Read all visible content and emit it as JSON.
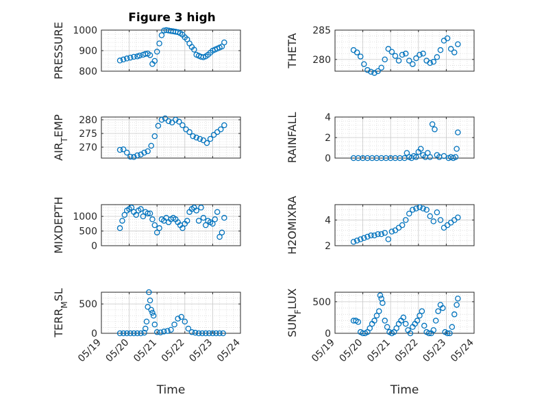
{
  "figure": {
    "title": "Figure 3 high"
  },
  "colors": {
    "marker": "#0072BD",
    "grid": "#c8c8c8",
    "axis": "#262626",
    "background": "#ffffff"
  },
  "chart_data": [
    {
      "type": "scatter",
      "title": "Figure 3 high",
      "xlabel": "",
      "ylabel": "PRESSURE",
      "xlim": [
        "05/19",
        "05/24"
      ],
      "xticks": [
        "05/19",
        "05/20",
        "05/21",
        "05/22",
        "05/23",
        "05/24"
      ],
      "xticklabels_visible": false,
      "ylim": [
        800,
        1000
      ],
      "yticks": [
        800,
        900,
        1000
      ],
      "grid": "on",
      "series": [
        {
          "x": [
            "05/19 16:00",
            "05/19 19:00",
            "05/19 22:00",
            "05/20 01:00",
            "05/20 04:00",
            "05/20 07:00",
            "05/20 09:00",
            "05/20 12:00",
            "05/20 14:00",
            "05/20 16:00",
            "05/20 18:00",
            "05/20 20:00",
            "05/20 22:00",
            "05/21 00:00",
            "05/21 02:00",
            "05/21 04:00",
            "05/21 06:00",
            "05/21 08:00",
            "05/21 10:00",
            "05/21 12:00",
            "05/21 14:00",
            "05/21 16:00",
            "05/21 18:00",
            "05/21 20:00",
            "05/21 22:00",
            "05/22 00:00",
            "05/22 02:00",
            "05/22 04:00",
            "05/22 06:00",
            "05/22 08:00",
            "05/22 10:00",
            "05/22 12:00",
            "05/22 14:00",
            "05/22 16:00",
            "05/22 18:00",
            "05/22 20:00",
            "05/22 22:00",
            "05/23 00:00",
            "05/23 02:00",
            "05/23 04:00",
            "05/23 06:00",
            "05/23 08:00",
            "05/23 10:00"
          ],
          "y": [
            852,
            857,
            862,
            866,
            870,
            872,
            876,
            880,
            884,
            886,
            878,
            835,
            850,
            895,
            935,
            975,
            998,
            1000,
            998,
            996,
            994,
            992,
            990,
            985,
            978,
            965,
            955,
            935,
            918,
            905,
            880,
            875,
            870,
            868,
            872,
            880,
            890,
            900,
            905,
            910,
            915,
            920,
            940
          ]
        }
      ]
    },
    {
      "type": "scatter",
      "title": "",
      "xlabel": "",
      "ylabel": "THETA",
      "xlim": [
        "05/19",
        "05/24"
      ],
      "xticks": [
        "05/19",
        "05/20",
        "05/21",
        "05/22",
        "05/23",
        "05/24"
      ],
      "xticklabels_visible": false,
      "ylim": [
        278,
        285
      ],
      "yticks": [
        280,
        285
      ],
      "grid": "on",
      "series": [
        {
          "x": [
            "05/19 16:00",
            "05/19 19:00",
            "05/19 22:00",
            "05/20 01:00",
            "05/20 04:00",
            "05/20 07:00",
            "05/20 10:00",
            "05/20 13:00",
            "05/20 16:00",
            "05/20 19:00",
            "05/20 22:00",
            "05/21 01:00",
            "05/21 04:00",
            "05/21 07:00",
            "05/21 10:00",
            "05/21 13:00",
            "05/21 16:00",
            "05/21 19:00",
            "05/21 22:00",
            "05/22 01:00",
            "05/22 04:00",
            "05/22 07:00",
            "05/22 10:00",
            "05/22 13:00",
            "05/22 16:00",
            "05/22 19:00",
            "05/22 22:00",
            "05/23 01:00",
            "05/23 04:00",
            "05/23 07:00",
            "05/23 10:00"
          ],
          "y": [
            281.6,
            281.2,
            280.5,
            279.2,
            278.2,
            277.9,
            277.7,
            278.0,
            278.6,
            280.0,
            281.8,
            281.3,
            280.6,
            279.8,
            280.8,
            281.0,
            279.8,
            279.2,
            280.2,
            280.8,
            281.0,
            279.8,
            279.4,
            279.6,
            280.4,
            281.6,
            283.2,
            283.6,
            281.8,
            281.2,
            282.6
          ]
        }
      ]
    },
    {
      "type": "scatter",
      "title": "",
      "xlabel": "",
      "ylabel": "AIR_TEMP",
      "xlim": [
        "05/19",
        "05/24"
      ],
      "xticks": [
        "05/19",
        "05/20",
        "05/21",
        "05/22",
        "05/23",
        "05/24"
      ],
      "xticklabels_visible": false,
      "ylim": [
        266,
        281
      ],
      "yticks": [
        270,
        275,
        280
      ],
      "grid": "on",
      "series": [
        {
          "x": [
            "05/19 16:00",
            "05/19 19:00",
            "05/19 22:00",
            "05/20 01:00",
            "05/20 04:00",
            "05/20 07:00",
            "05/20 10:00",
            "05/20 13:00",
            "05/20 16:00",
            "05/20 19:00",
            "05/20 22:00",
            "05/21 01:00",
            "05/21 04:00",
            "05/21 07:00",
            "05/21 10:00",
            "05/21 13:00",
            "05/21 16:00",
            "05/21 19:00",
            "05/21 22:00",
            "05/22 01:00",
            "05/22 04:00",
            "05/22 07:00",
            "05/22 10:00",
            "05/22 13:00",
            "05/22 16:00",
            "05/22 19:00",
            "05/22 22:00",
            "05/23 01:00",
            "05/23 04:00",
            "05/23 07:00",
            "05/23 10:00"
          ],
          "y": [
            269.0,
            269.2,
            268.0,
            266.5,
            266.4,
            267.0,
            267.3,
            268.0,
            268.5,
            270.5,
            274.0,
            277.8,
            280.0,
            280.5,
            279.5,
            279.0,
            280.0,
            279.3,
            278.0,
            276.5,
            275.5,
            274.0,
            273.5,
            273.0,
            272.5,
            271.5,
            273.0,
            274.5,
            275.5,
            276.5,
            278.0
          ]
        }
      ]
    },
    {
      "type": "scatter",
      "title": "",
      "xlabel": "",
      "ylabel": "RAINFALL",
      "xlim": [
        "05/19",
        "05/24"
      ],
      "xticks": [
        "05/19",
        "05/20",
        "05/21",
        "05/22",
        "05/23",
        "05/24"
      ],
      "xticklabels_visible": false,
      "ylim": [
        0,
        4
      ],
      "yticks": [
        0,
        2,
        4
      ],
      "grid": "on",
      "series": [
        {
          "x": [
            "05/19 16:00",
            "05/19 20:00",
            "05/20 00:00",
            "05/20 04:00",
            "05/20 08:00",
            "05/20 12:00",
            "05/20 16:00",
            "05/20 20:00",
            "05/21 00:00",
            "05/21 04:00",
            "05/21 08:00",
            "05/21 12:00",
            "05/21 14:00",
            "05/21 16:00",
            "05/21 18:00",
            "05/21 20:00",
            "05/21 22:00",
            "05/22 00:00",
            "05/22 02:00",
            "05/22 04:00",
            "05/22 06:00",
            "05/22 08:00",
            "05/22 10:00",
            "05/22 12:00",
            "05/22 14:00",
            "05/22 16:00",
            "05/22 18:00",
            "05/22 22:00",
            "05/23 02:00",
            "05/23 04:00",
            "05/23 06:00",
            "05/23 08:00",
            "05/23 09:00",
            "05/23 10:00"
          ],
          "y": [
            0,
            0,
            0,
            0,
            0,
            0,
            0,
            0,
            0,
            0,
            0,
            0,
            0.5,
            0.1,
            0.0,
            0.2,
            0.1,
            0.6,
            0.9,
            0.3,
            0.1,
            0.5,
            0.1,
            3.3,
            2.8,
            0.3,
            0.1,
            0.2,
            0.0,
            0.1,
            0.0,
            0.1,
            0.9,
            2.5
          ]
        }
      ]
    },
    {
      "type": "scatter",
      "title": "",
      "xlabel": "",
      "ylabel": "MIXDEPTH",
      "xlim": [
        "05/19",
        "05/24"
      ],
      "xticks": [
        "05/19",
        "05/20",
        "05/21",
        "05/22",
        "05/23",
        "05/24"
      ],
      "xticklabels_visible": false,
      "ylim": [
        0,
        1400
      ],
      "yticks": [
        0,
        500,
        1000
      ],
      "grid": "on",
      "series": [
        {
          "x": [
            "05/19 16:00",
            "05/19 18:00",
            "05/19 20:00",
            "05/19 22:00",
            "05/20 00:00",
            "05/20 02:00",
            "05/20 04:00",
            "05/20 06:00",
            "05/20 08:00",
            "05/20 10:00",
            "05/20 12:00",
            "05/20 14:00",
            "05/20 16:00",
            "05/20 18:00",
            "05/20 20:00",
            "05/20 22:00",
            "05/21 00:00",
            "05/21 02:00",
            "05/21 04:00",
            "05/21 06:00",
            "05/21 08:00",
            "05/21 10:00",
            "05/21 12:00",
            "05/21 14:00",
            "05/21 16:00",
            "05/21 18:00",
            "05/21 20:00",
            "05/21 22:00",
            "05/22 00:00",
            "05/22 02:00",
            "05/22 04:00",
            "05/22 06:00",
            "05/22 08:00",
            "05/22 10:00",
            "05/22 12:00",
            "05/22 14:00",
            "05/22 16:00",
            "05/22 18:00",
            "05/22 20:00",
            "05/22 22:00",
            "05/23 00:00",
            "05/23 02:00",
            "05/23 04:00",
            "05/23 06:00",
            "05/23 08:00",
            "05/23 10:00"
          ],
          "y": [
            600,
            850,
            1050,
            1200,
            1250,
            1300,
            1150,
            1050,
            1200,
            1250,
            1000,
            1150,
            1100,
            1100,
            900,
            700,
            450,
            600,
            900,
            850,
            950,
            800,
            900,
            950,
            900,
            800,
            700,
            600,
            750,
            850,
            1150,
            1250,
            1300,
            1200,
            850,
            1300,
            950,
            700,
            850,
            800,
            750,
            900,
            1150,
            300,
            450,
            950
          ]
        }
      ]
    },
    {
      "type": "scatter",
      "title": "",
      "xlabel": "",
      "ylabel": "H2OMIXRA",
      "xlim": [
        "05/19",
        "05/24"
      ],
      "xticks": [
        "05/19",
        "05/20",
        "05/21",
        "05/22",
        "05/23",
        "05/24"
      ],
      "xticklabels_visible": false,
      "ylim": [
        2,
        5.2
      ],
      "yticks": [
        2,
        4
      ],
      "grid": "on",
      "series": [
        {
          "x": [
            "05/19 16:00",
            "05/19 19:00",
            "05/19 22:00",
            "05/20 01:00",
            "05/20 04:00",
            "05/20 07:00",
            "05/20 10:00",
            "05/20 13:00",
            "05/20 16:00",
            "05/20 19:00",
            "05/20 22:00",
            "05/21 01:00",
            "05/21 04:00",
            "05/21 07:00",
            "05/21 10:00",
            "05/21 13:00",
            "05/21 16:00",
            "05/21 19:00",
            "05/21 22:00",
            "05/22 01:00",
            "05/22 04:00",
            "05/22 07:00",
            "05/22 10:00",
            "05/22 13:00",
            "05/22 16:00",
            "05/22 19:00",
            "05/22 22:00",
            "05/23 01:00",
            "05/23 04:00",
            "05/23 07:00",
            "05/23 10:00"
          ],
          "y": [
            2.3,
            2.4,
            2.5,
            2.6,
            2.7,
            2.8,
            2.8,
            2.9,
            2.9,
            3.0,
            2.5,
            3.1,
            3.2,
            3.4,
            3.6,
            4.0,
            4.5,
            4.8,
            4.9,
            5.0,
            4.9,
            4.8,
            4.3,
            3.9,
            4.6,
            4.0,
            3.4,
            3.6,
            3.8,
            4.0,
            4.2
          ]
        }
      ]
    },
    {
      "type": "scatter",
      "title": "",
      "xlabel": "Time",
      "ylabel": "TERR_MSL",
      "xlim": [
        "05/19",
        "05/24"
      ],
      "xticks": [
        "05/19",
        "05/20",
        "05/21",
        "05/22",
        "05/23",
        "05/24"
      ],
      "xticklabels_visible": true,
      "ylim": [
        0,
        700
      ],
      "yticks": [
        0,
        500
      ],
      "grid": "on",
      "series": [
        {
          "x": [
            "05/19 16:00",
            "05/19 19:00",
            "05/19 22:00",
            "05/20 01:00",
            "05/20 04:00",
            "05/20 07:00",
            "05/20 10:00",
            "05/20 13:00",
            "05/20 14:00",
            "05/20 15:00",
            "05/20 16:00",
            "05/20 17:00",
            "05/20 18:00",
            "05/20 19:00",
            "05/20 20:00",
            "05/20 21:00",
            "05/20 22:00",
            "05/21 00:00",
            "05/21 03:00",
            "05/21 06:00",
            "05/21 09:00",
            "05/21 12:00",
            "05/21 15:00",
            "05/21 18:00",
            "05/21 21:00",
            "05/22 00:00",
            "05/22 03:00",
            "05/22 06:00",
            "05/22 09:00",
            "05/22 12:00",
            "05/22 15:00",
            "05/22 18:00",
            "05/22 21:00",
            "05/23 00:00",
            "05/23 03:00",
            "05/23 06:00",
            "05/23 09:00"
          ],
          "y": [
            0,
            0,
            0,
            0,
            0,
            0,
            0,
            10,
            80,
            200,
            450,
            700,
            560,
            400,
            350,
            300,
            150,
            20,
            15,
            30,
            40,
            60,
            150,
            250,
            280,
            200,
            80,
            20,
            10,
            0,
            0,
            0,
            0,
            0,
            0,
            0,
            0
          ]
        }
      ]
    },
    {
      "type": "scatter",
      "title": "",
      "xlabel": "Time",
      "ylabel": "SUN_FLUX",
      "xlim": [
        "05/19",
        "05/24"
      ],
      "xticks": [
        "05/19",
        "05/20",
        "05/21",
        "05/22",
        "05/23",
        "05/24"
      ],
      "xticklabels_visible": true,
      "ylim": [
        0,
        650
      ],
      "yticks": [
        0,
        500
      ],
      "grid": "on",
      "series": [
        {
          "x": [
            "05/19 16:00",
            "05/19 18:00",
            "05/19 20:00",
            "05/19 22:00",
            "05/20 00:00",
            "05/20 02:00",
            "05/20 04:00",
            "05/20 06:00",
            "05/20 08:00",
            "05/20 10:00",
            "05/20 12:00",
            "05/20 14:00",
            "05/20 15:00",
            "05/20 16:00",
            "05/20 17:00",
            "05/20 19:00",
            "05/20 21:00",
            "05/20 23:00",
            "05/21 01:00",
            "05/21 03:00",
            "05/21 05:00",
            "05/21 07:00",
            "05/21 09:00",
            "05/21 11:00",
            "05/21 13:00",
            "05/21 15:00",
            "05/21 17:00",
            "05/21 19:00",
            "05/21 21:00",
            "05/21 23:00",
            "05/22 01:00",
            "05/22 03:00",
            "05/22 05:00",
            "05/22 07:00",
            "05/22 09:00",
            "05/22 11:00",
            "05/22 13:00",
            "05/22 15:00",
            "05/22 17:00",
            "05/22 19:00",
            "05/22 21:00",
            "05/22 23:00",
            "05/23 01:00",
            "05/23 03:00",
            "05/23 05:00",
            "05/23 07:00",
            "05/23 09:00",
            "05/23 10:00"
          ],
          "y": [
            200,
            200,
            180,
            20,
            0,
            0,
            20,
            80,
            150,
            200,
            280,
            350,
            600,
            550,
            480,
            200,
            100,
            20,
            0,
            20,
            80,
            150,
            200,
            250,
            150,
            50,
            0,
            100,
            150,
            200,
            280,
            350,
            120,
            20,
            0,
            0,
            50,
            200,
            350,
            450,
            400,
            20,
            0,
            0,
            100,
            300,
            450,
            550
          ]
        }
      ]
    }
  ]
}
